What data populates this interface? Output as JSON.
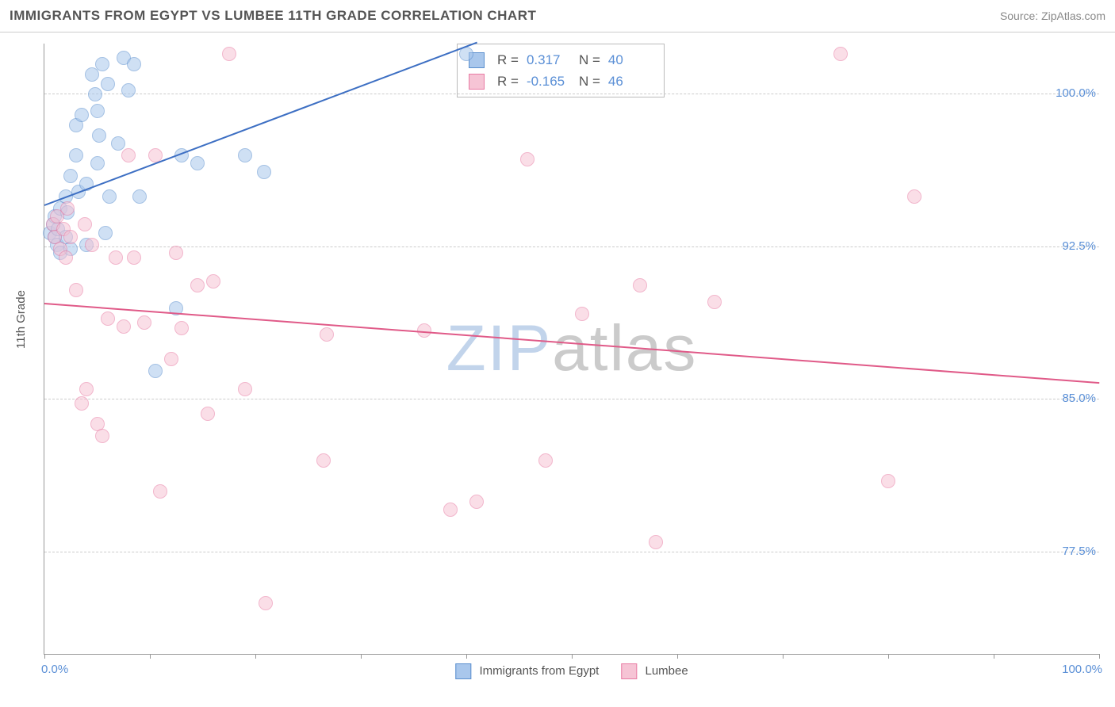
{
  "title": "IMMIGRANTS FROM EGYPT VS LUMBEE 11TH GRADE CORRELATION CHART",
  "source": "Source: ZipAtlas.com",
  "watermark": {
    "left": "ZIP",
    "right": "atlas"
  },
  "chart": {
    "type": "scatter",
    "background_color": "#ffffff",
    "grid_color": "#cccccc",
    "axis_color": "#999999",
    "tick_label_color": "#5a8fd6",
    "axis_title_color": "#555555",
    "y_axis_title": "11th Grade",
    "title_fontsize": 17,
    "label_fontsize": 15,
    "xlim": [
      0,
      100
    ],
    "ylim": [
      72.5,
      102.5
    ],
    "x_ticks": [
      0,
      10,
      20,
      30,
      40,
      50,
      60,
      70,
      80,
      90,
      100
    ],
    "y_gridlines": [
      77.5,
      85.0,
      92.5,
      100.0
    ],
    "y_tick_labels": [
      "77.5%",
      "85.0%",
      "92.5%",
      "100.0%"
    ],
    "x_left_label": "0.0%",
    "x_right_label": "100.0%",
    "marker_radius": 8,
    "marker_opacity": 0.55,
    "series": [
      {
        "name": "Immigrants from Egypt",
        "color_fill": "#a9c7ec",
        "color_stroke": "#5b8fce",
        "R": "0.317",
        "N": "40",
        "trend": {
          "x1": 0,
          "y1": 94.5,
          "x2": 41,
          "y2": 102.5,
          "color": "#3d6fc3",
          "width": 2
        },
        "points": [
          [
            0.5,
            93.2
          ],
          [
            0.8,
            93.6
          ],
          [
            1.0,
            94.0
          ],
          [
            1.0,
            93.0
          ],
          [
            1.2,
            92.6
          ],
          [
            1.3,
            93.4
          ],
          [
            1.5,
            92.2
          ],
          [
            1.5,
            94.4
          ],
          [
            2.0,
            95.0
          ],
          [
            2.0,
            93.0
          ],
          [
            2.2,
            94.2
          ],
          [
            2.5,
            92.4
          ],
          [
            2.5,
            96.0
          ],
          [
            3.0,
            97.0
          ],
          [
            3.0,
            98.5
          ],
          [
            3.2,
            95.2
          ],
          [
            3.5,
            99.0
          ],
          [
            4.0,
            92.6
          ],
          [
            4.0,
            95.6
          ],
          [
            4.5,
            101.0
          ],
          [
            4.8,
            100.0
          ],
          [
            5.0,
            96.6
          ],
          [
            5.0,
            99.2
          ],
          [
            5.2,
            98.0
          ],
          [
            5.5,
            101.5
          ],
          [
            5.8,
            93.2
          ],
          [
            6.0,
            100.5
          ],
          [
            6.2,
            95.0
          ],
          [
            7.0,
            97.6
          ],
          [
            7.5,
            101.8
          ],
          [
            8.0,
            100.2
          ],
          [
            8.5,
            101.5
          ],
          [
            9.0,
            95.0
          ],
          [
            10.5,
            86.4
          ],
          [
            12.5,
            89.5
          ],
          [
            13.0,
            97.0
          ],
          [
            14.5,
            96.6
          ],
          [
            19.0,
            97.0
          ],
          [
            20.8,
            96.2
          ],
          [
            40.0,
            102.0
          ]
        ]
      },
      {
        "name": "Lumbee",
        "color_fill": "#f6c4d5",
        "color_stroke": "#e87ba3",
        "R": "-0.165",
        "N": "46",
        "trend": {
          "x1": 0,
          "y1": 89.7,
          "x2": 100,
          "y2": 85.8,
          "color": "#e05a88",
          "width": 2
        },
        "points": [
          [
            0.8,
            93.6
          ],
          [
            1.0,
            93.0
          ],
          [
            1.2,
            94.0
          ],
          [
            1.5,
            92.4
          ],
          [
            1.8,
            93.4
          ],
          [
            2.0,
            92.0
          ],
          [
            2.2,
            94.4
          ],
          [
            2.5,
            93.0
          ],
          [
            3.0,
            90.4
          ],
          [
            3.5,
            84.8
          ],
          [
            3.8,
            93.6
          ],
          [
            4.0,
            85.5
          ],
          [
            4.5,
            92.6
          ],
          [
            5.0,
            83.8
          ],
          [
            5.5,
            83.2
          ],
          [
            6.0,
            89.0
          ],
          [
            6.8,
            92.0
          ],
          [
            7.5,
            88.6
          ],
          [
            8.0,
            97.0
          ],
          [
            8.5,
            92.0
          ],
          [
            9.5,
            88.8
          ],
          [
            10.5,
            97.0
          ],
          [
            11.0,
            80.5
          ],
          [
            12.0,
            87.0
          ],
          [
            12.5,
            92.2
          ],
          [
            13.0,
            88.5
          ],
          [
            14.5,
            90.6
          ],
          [
            15.5,
            84.3
          ],
          [
            16.0,
            90.8
          ],
          [
            17.5,
            102.0
          ],
          [
            19.0,
            85.5
          ],
          [
            21.0,
            75.0
          ],
          [
            26.5,
            82.0
          ],
          [
            26.8,
            88.2
          ],
          [
            36.0,
            88.4
          ],
          [
            38.5,
            79.6
          ],
          [
            41.0,
            80.0
          ],
          [
            45.8,
            96.8
          ],
          [
            47.5,
            82.0
          ],
          [
            51.0,
            89.2
          ],
          [
            56.5,
            90.6
          ],
          [
            58.0,
            78.0
          ],
          [
            63.5,
            89.8
          ],
          [
            75.5,
            102.0
          ],
          [
            80.0,
            81.0
          ],
          [
            82.5,
            95.0
          ]
        ]
      }
    ]
  },
  "legend": {
    "swatch_size": 18,
    "items": [
      {
        "label": "Immigrants from Egypt",
        "fill": "#a9c7ec",
        "stroke": "#5b8fce"
      },
      {
        "label": "Lumbee",
        "fill": "#f6c4d5",
        "stroke": "#e87ba3"
      }
    ]
  },
  "stats_box": {
    "R_label": "R  =",
    "N_label": "N  ="
  }
}
